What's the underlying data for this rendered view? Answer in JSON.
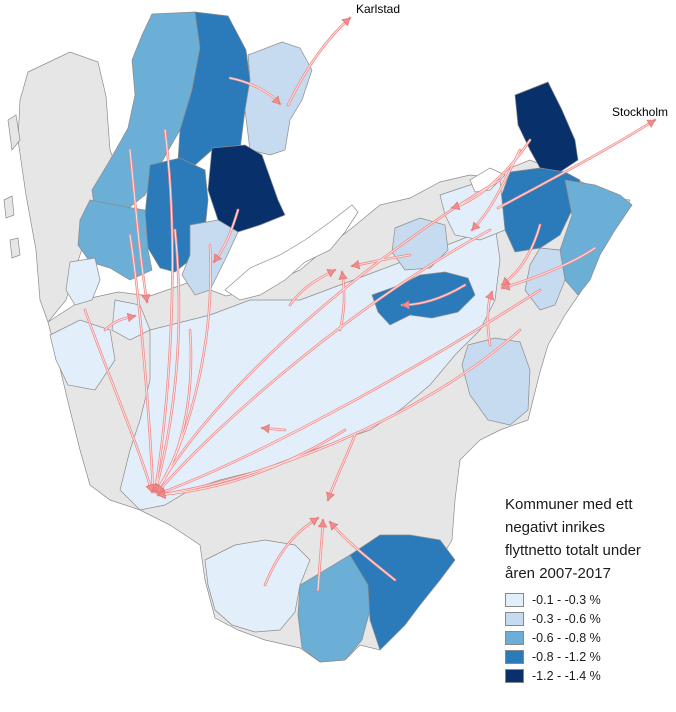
{
  "labels": {
    "karlstad": "Karlstad",
    "stockholm": "Stockholm"
  },
  "legend": {
    "title_lines": [
      "Kommuner med ett",
      "negativt inrikes",
      "flyttnetto totalt under",
      "åren 2007-2017"
    ],
    "classes": [
      {
        "label": "-0.1 - -0.3 %",
        "color": "#e2eefa"
      },
      {
        "label": "-0.3 - -0.6 %",
        "color": "#c6dbef"
      },
      {
        "label": "-0.6 - -0.8 %",
        "color": "#6baed6"
      },
      {
        "label": "-0.8 - -1.2 %",
        "color": "#2b7bba"
      },
      {
        "label": "-1.2  - -1.4 %",
        "color": "#08306b"
      }
    ]
  },
  "colors": {
    "no_data": "#e6e6e6",
    "flow_arrow": "#f08c8c",
    "border": "#8c8c8c"
  }
}
